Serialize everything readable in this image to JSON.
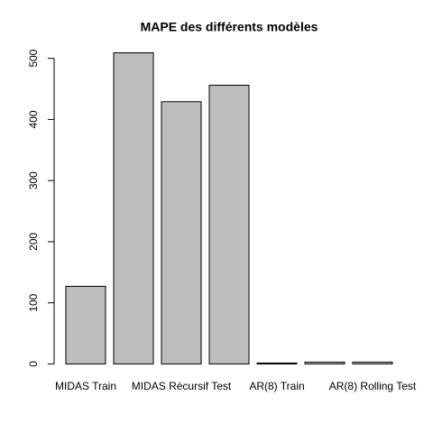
{
  "chart_data": {
    "type": "bar",
    "title": "MAPE des différents modèles",
    "categories": [
      "MIDAS Train",
      null,
      "MIDAS Récursif Test",
      null,
      "AR(8) Train",
      null,
      "AR(8) Rolling Test"
    ],
    "values": [
      127,
      509,
      429,
      456,
      1.5,
      3,
      3
    ],
    "color": "#bebebe",
    "ylim": [
      -20,
      529
    ],
    "yticks": [
      0,
      100,
      200,
      300,
      400,
      500
    ],
    "grid": false
  }
}
